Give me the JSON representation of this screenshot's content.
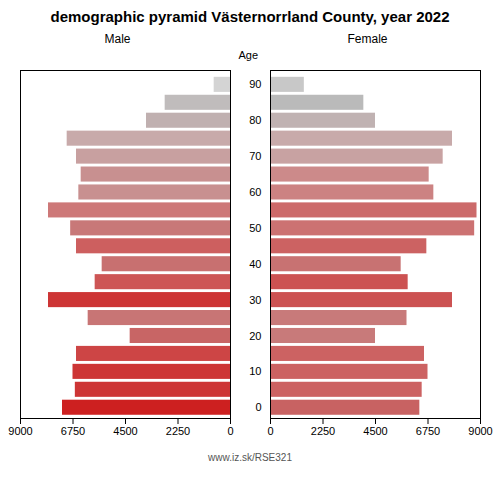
{
  "chart_data": {
    "type": "bar",
    "orientation": "horizontal",
    "title": "demographic pyramid Västernorrland County, year 2022",
    "caption": "www.iz.sk/RSE321",
    "ylabel": "Age",
    "categories": [
      0,
      5,
      10,
      15,
      20,
      25,
      30,
      35,
      40,
      45,
      50,
      55,
      60,
      65,
      70,
      75,
      80,
      85,
      90
    ],
    "series": [
      {
        "name": "Male",
        "values": [
          7200,
          6650,
          6750,
          6600,
          4300,
          6100,
          7800,
          5800,
          5500,
          6600,
          6850,
          7800,
          6500,
          6400,
          6600,
          7000,
          3600,
          2800,
          700
        ],
        "colors": [
          "#cd2020",
          "#cd3535",
          "#cd3535",
          "#cd4545",
          "#c86565",
          "#c87575",
          "#cd3535",
          "#cd5555",
          "#c87070",
          "#cd5f5f",
          "#c87878",
          "#cd7878",
          "#c89090",
          "#c89090",
          "#c8a0a0",
          "#c8aaaa",
          "#c0b0b0",
          "#c0bcbc",
          "#d4d4d4"
        ]
      },
      {
        "name": "Female",
        "values": [
          6400,
          6500,
          6750,
          6600,
          4500,
          5850,
          7800,
          5900,
          5600,
          6700,
          8750,
          8850,
          7000,
          6800,
          7400,
          7800,
          4500,
          4000,
          1450
        ],
        "colors": [
          "#c86262",
          "#cc6262",
          "#cc6262",
          "#cc6262",
          "#c87a7a",
          "#c87a7a",
          "#cc5252",
          "#cc5252",
          "#c87272",
          "#cc6262",
          "#cc7272",
          "#cc6a6a",
          "#cc8282",
          "#cc8a8a",
          "#c8a2a2",
          "#c8aaaa",
          "#c0b2b2",
          "#bababa",
          "#c8c8c8"
        ]
      }
    ],
    "xlim": [
      0,
      9000
    ],
    "xticks": [
      0,
      2250,
      4500,
      6750,
      9000
    ],
    "ylim": [
      -3,
      94
    ],
    "yticks": [
      0,
      10,
      20,
      30,
      40,
      50,
      60,
      70,
      80,
      90
    ],
    "grid": false
  }
}
